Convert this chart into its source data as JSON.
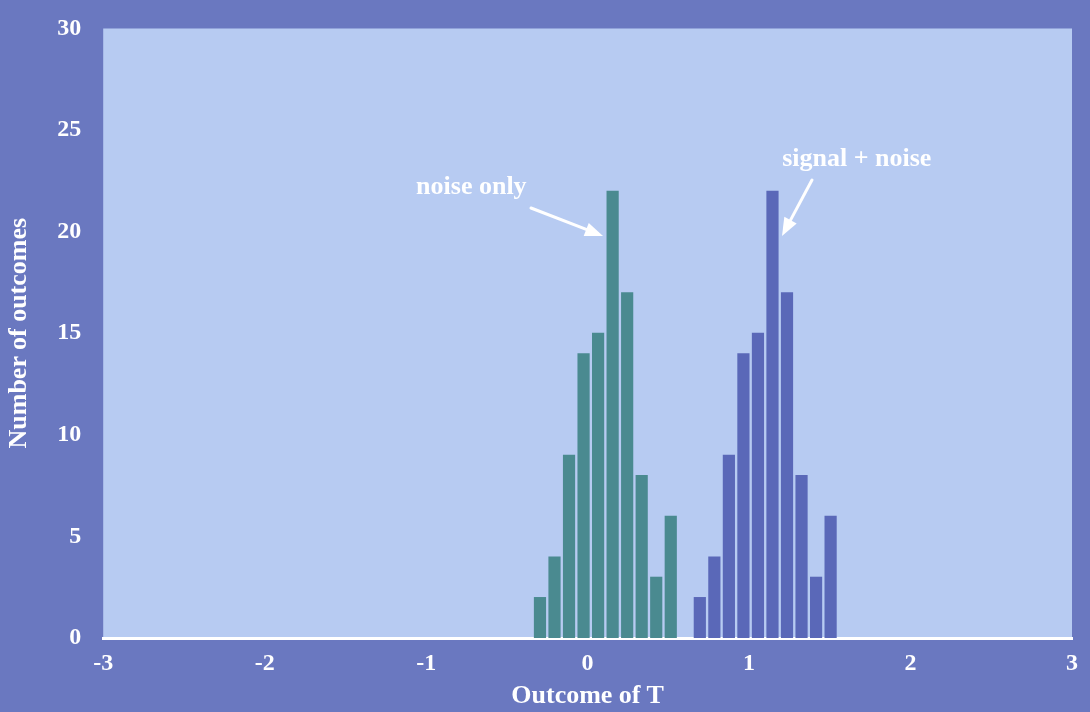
{
  "chart_data": {
    "type": "histogram",
    "xlabel": "Outcome of T",
    "ylabel": "Number of outcomes",
    "xlim": [
      -3,
      3
    ],
    "xticks": [
      -3,
      -2,
      -1,
      0,
      1,
      2,
      3
    ],
    "ylim": [
      0,
      30
    ],
    "yticks": [
      0,
      5,
      10,
      15,
      20,
      25,
      30
    ],
    "legend": false,
    "bins": [
      -0.34,
      -0.25,
      -0.16,
      -0.07,
      0.02,
      0.11,
      0.2,
      0.29,
      0.38,
      0.47,
      0.56,
      0.65,
      0.74,
      0.83,
      0.92,
      1.01,
      1.1,
      1.19,
      1.28,
      1.37,
      1.46,
      1.55
    ],
    "series": [
      {
        "color": "#4a8a90",
        "values": [
          2,
          4,
          9,
          14,
          15,
          22,
          17,
          8,
          3,
          6,
          null,
          null,
          null,
          null,
          null,
          null,
          null,
          null,
          null,
          null,
          null
        ]
      },
      {
        "color": "#5a68b8",
        "values": [
          null,
          null,
          null,
          null,
          null,
          null,
          null,
          null,
          null,
          null,
          null,
          2,
          4,
          9,
          14,
          15,
          22,
          17,
          8,
          3,
          6
        ]
      }
    ],
    "annotations": [
      "noise only",
      "signal + noise"
    ]
  }
}
